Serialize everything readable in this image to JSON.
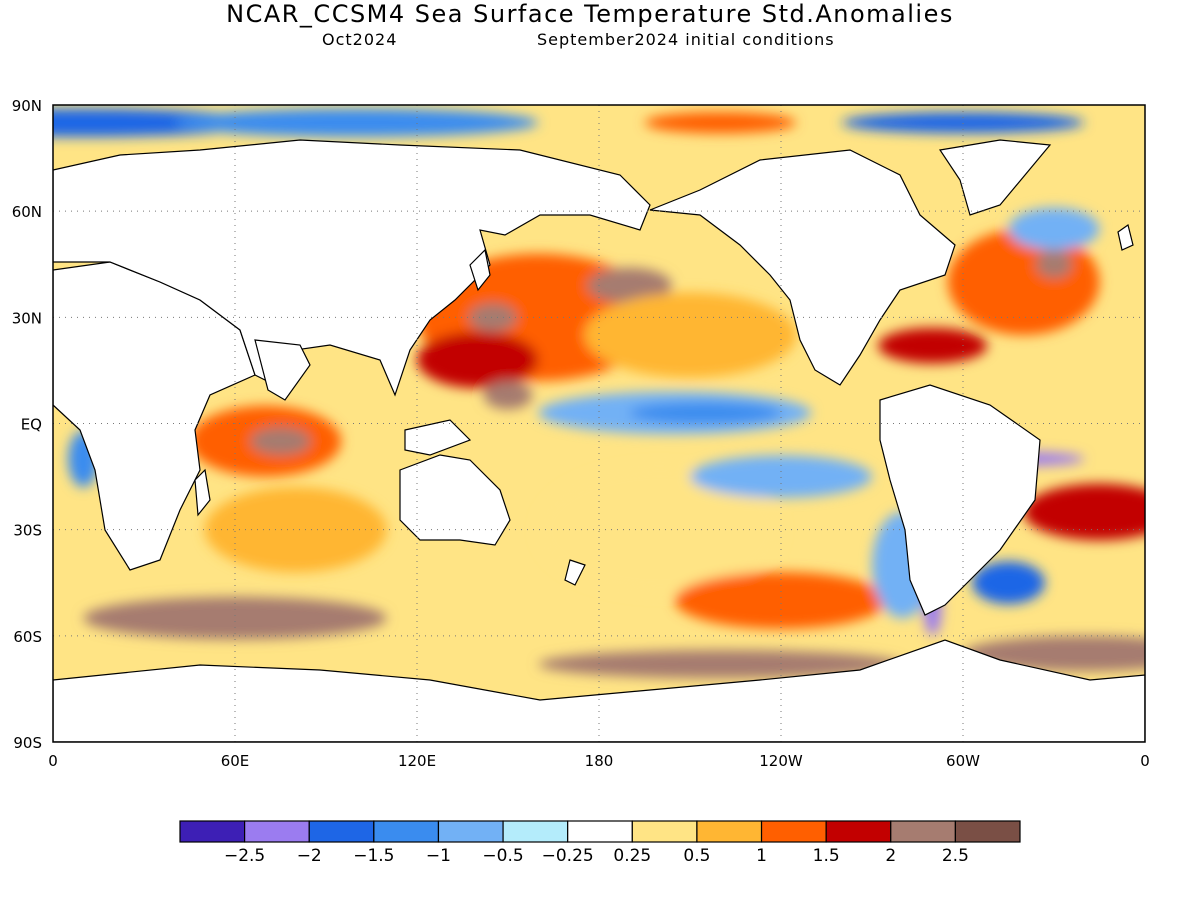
{
  "title": "NCAR_CCSM4 Sea Surface Temperature Std.Anomalies",
  "subtitle_left": "Oct2024",
  "subtitle_right": "September2024 initial conditions",
  "lat_ticks": [
    {
      "label": "90N",
      "lat": 90
    },
    {
      "label": "60N",
      "lat": 60
    },
    {
      "label": "30N",
      "lat": 30
    },
    {
      "label": "EQ",
      "lat": 0
    },
    {
      "label": "30S",
      "lat": -30
    },
    {
      "label": "60S",
      "lat": -60
    },
    {
      "label": "90S",
      "lat": -90
    }
  ],
  "lon_ticks": [
    {
      "label": "0",
      "lon": 0
    },
    {
      "label": "60E",
      "lon": 60
    },
    {
      "label": "120E",
      "lon": 120
    },
    {
      "label": "180",
      "lon": 180
    },
    {
      "label": "120W",
      "lon": 240
    },
    {
      "label": "60W",
      "lon": 300
    },
    {
      "label": "0",
      "lon": 360
    }
  ],
  "colorbar": {
    "colors": [
      "#3d1fb5",
      "#9b7cf0",
      "#1e66e6",
      "#3a8cef",
      "#72b1f5",
      "#b4ecfb",
      "#ffffff",
      "#ffe485",
      "#ffb633",
      "#ff5f00",
      "#c20000",
      "#a67c70",
      "#7a4f45"
    ],
    "labels": [
      "-2.5",
      "-2",
      "-1.5",
      "-1",
      "-0.5",
      "-0.25",
      "0.25",
      "0.5",
      "1",
      "1.5",
      "2",
      "2.5"
    ]
  },
  "anomaly_regions": [
    {
      "level": 1.5,
      "lon": 160,
      "lat": 30,
      "rx": 40,
      "ry": 18
    },
    {
      "level": 2.5,
      "lon": 190,
      "lat": 39,
      "rx": 14,
      "ry": 5
    },
    {
      "level": 2.5,
      "lon": 145,
      "lat": 30,
      "rx": 8,
      "ry": 4
    },
    {
      "level": 2.0,
      "lon": 140,
      "lat": 18,
      "rx": 20,
      "ry": 8
    },
    {
      "level": 2.5,
      "lon": 150,
      "lat": 8,
      "rx": 8,
      "ry": 4
    },
    {
      "level": 1.0,
      "lon": 210,
      "lat": 25,
      "rx": 35,
      "ry": 12
    },
    {
      "level": -0.5,
      "lon": 205,
      "lat": 3,
      "rx": 45,
      "ry": 6
    },
    {
      "level": -1.0,
      "lon": 215,
      "lat": 3,
      "rx": 25,
      "ry": 3
    },
    {
      "level": 0.5,
      "lon": 200,
      "lat": -30,
      "rx": 40,
      "ry": 18
    },
    {
      "level": -0.5,
      "lon": 240,
      "lat": -15,
      "rx": 30,
      "ry": 6
    },
    {
      "level": 1.5,
      "lon": 240,
      "lat": -50,
      "rx": 35,
      "ry": 8
    },
    {
      "level": 2.5,
      "lon": 60,
      "lat": -55,
      "rx": 50,
      "ry": 6
    },
    {
      "level": 2.5,
      "lon": 220,
      "lat": -68,
      "rx": 60,
      "ry": 4
    },
    {
      "level": 1.5,
      "lon": 70,
      "lat": -5,
      "rx": 25,
      "ry": 10
    },
    {
      "level": 2.5,
      "lon": 75,
      "lat": -5,
      "rx": 10,
      "ry": 4
    },
    {
      "level": 1.0,
      "lon": 80,
      "lat": -30,
      "rx": 30,
      "ry": 12
    },
    {
      "level": 1.5,
      "lon": 320,
      "lat": 40,
      "rx": 25,
      "ry": 15
    },
    {
      "level": 2.5,
      "lon": 330,
      "lat": 45,
      "rx": 6,
      "ry": 4
    },
    {
      "level": 2.0,
      "lon": 290,
      "lat": 22,
      "rx": 18,
      "ry": 5
    },
    {
      "level": -0.5,
      "lon": 330,
      "lat": 55,
      "rx": 15,
      "ry": 6
    },
    {
      "level": 2.0,
      "lon": 345,
      "lat": -25,
      "rx": 25,
      "ry": 8
    },
    {
      "level": -1.5,
      "lon": 315,
      "lat": -45,
      "rx": 12,
      "ry": 6
    },
    {
      "level": -2.0,
      "lon": 290,
      "lat": -52,
      "rx": 3,
      "ry": 8
    },
    {
      "level": -0.5,
      "lon": 280,
      "lat": -40,
      "rx": 10,
      "ry": 15
    },
    {
      "level": 2.5,
      "lon": 340,
      "lat": -65,
      "rx": 40,
      "ry": 5
    },
    {
      "level": -1.0,
      "lon": 10,
      "lat": -10,
      "rx": 5,
      "ry": 8
    },
    {
      "level": -1.5,
      "lon": 10,
      "lat": 85,
      "rx": 60,
      "ry": 4
    },
    {
      "level": -1.0,
      "lon": 100,
      "lat": 85,
      "rx": 60,
      "ry": 4
    },
    {
      "level": 1.5,
      "lon": 220,
      "lat": 85,
      "rx": 25,
      "ry": 3
    },
    {
      "level": -1.5,
      "lon": 300,
      "lat": 85,
      "rx": 40,
      "ry": 3
    },
    {
      "level": -2.0,
      "lon": 320,
      "lat": -10,
      "rx": 20,
      "ry": 2
    }
  ]
}
